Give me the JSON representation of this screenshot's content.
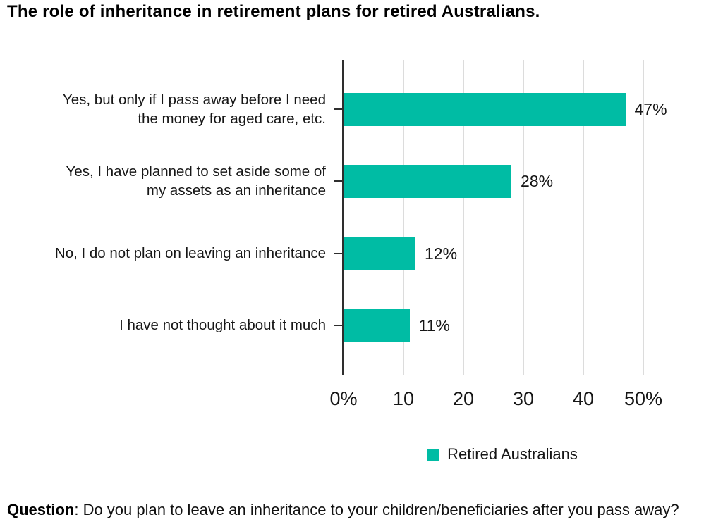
{
  "chart_data": {
    "type": "bar",
    "orientation": "horizontal",
    "title": "The role of inheritance in retirement plans for retired Australians.",
    "categories": [
      "Yes, but only if I pass away before I need the money for aged care, etc.",
      "Yes, I have planned to set aside some of my assets as an inheritance",
      "No, I do not plan on leaving an inheritance",
      "I have not thought about it much"
    ],
    "category_lines": [
      [
        "Yes, but only if I pass away before I need",
        "the money for aged care, etc."
      ],
      [
        "Yes, I have planned to set aside some of",
        "my assets as an inheritance"
      ],
      [
        "No, I do not plan on leaving an inheritance"
      ],
      [
        "I have not thought about it much"
      ]
    ],
    "series": [
      {
        "name": "Retired Australians",
        "values": [
          47,
          28,
          12,
          11
        ],
        "color": "#00bca4"
      }
    ],
    "value_labels": [
      "47%",
      "28%",
      "12%",
      "11%"
    ],
    "x_ticks": [
      {
        "value": 0,
        "label": "0%"
      },
      {
        "value": 10,
        "label": "10"
      },
      {
        "value": 20,
        "label": "20"
      },
      {
        "value": 30,
        "label": "30"
      },
      {
        "value": 40,
        "label": "40"
      },
      {
        "value": 50,
        "label": "50%"
      }
    ],
    "xlim": [
      0,
      50
    ],
    "grid": "vertical-gridlines-on",
    "legend_position": "bottom-center"
  },
  "colors": {
    "bar": "#00bca4",
    "axis": "#2e2e2e",
    "gridline": "#dcdcdc",
    "text": "#161616",
    "title": "#000000"
  },
  "footnote": {
    "bold": "Question",
    "rest": ": Do you plan to leave an inheritance to your children/beneficiaries after you pass away?"
  }
}
